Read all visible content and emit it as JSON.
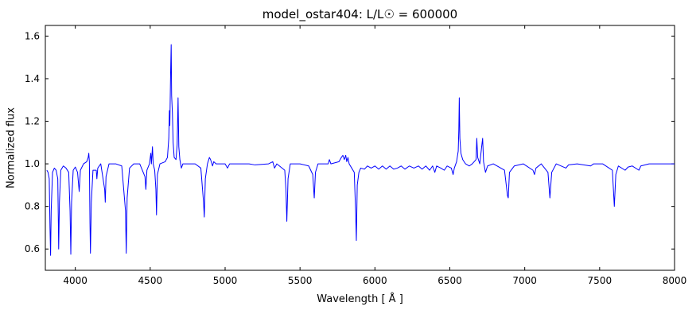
{
  "chart_data": {
    "type": "line",
    "title": "model_ostar404: L/L☉ = 600000",
    "xlabel": "Wavelength [ Å ]",
    "ylabel": "Normalized flux",
    "xlim": [
      3800,
      8000
    ],
    "ylim": [
      0.5,
      1.65
    ],
    "x_ticks": [
      4000,
      4500,
      5000,
      5500,
      6000,
      6500,
      7000,
      7500,
      8000
    ],
    "y_ticks": [
      0.6,
      0.8,
      1.0,
      1.2,
      1.4,
      1.6
    ],
    "grid": false,
    "legend": "none",
    "line_color": "#0000ff",
    "series": [
      {
        "name": "normalized_flux",
        "points": [
          [
            3810,
            0.97
          ],
          [
            3818,
            0.96
          ],
          [
            3826,
            0.93
          ],
          [
            3831,
            0.7
          ],
          [
            3835,
            0.57
          ],
          [
            3839,
            0.78
          ],
          [
            3848,
            0.96
          ],
          [
            3860,
            0.98
          ],
          [
            3872,
            0.97
          ],
          [
            3883,
            0.93
          ],
          [
            3887,
            0.72
          ],
          [
            3889,
            0.6
          ],
          [
            3894,
            0.82
          ],
          [
            3903,
            0.97
          ],
          [
            3920,
            0.99
          ],
          [
            3938,
            0.98
          ],
          [
            3956,
            0.96
          ],
          [
            3965,
            0.78
          ],
          [
            3970,
            0.575
          ],
          [
            3975,
            0.82
          ],
          [
            3986,
            0.97
          ],
          [
            4000,
            0.985
          ],
          [
            4015,
            0.96
          ],
          [
            4026,
            0.87
          ],
          [
            4034,
            0.97
          ],
          [
            4055,
            1.0
          ],
          [
            4076,
            1.01
          ],
          [
            4086,
            1.03
          ],
          [
            4090,
            1.05
          ],
          [
            4094,
            1.01
          ],
          [
            4098,
            0.72
          ],
          [
            4101,
            0.58
          ],
          [
            4107,
            0.82
          ],
          [
            4118,
            0.97
          ],
          [
            4140,
            0.97
          ],
          [
            4144,
            0.93
          ],
          [
            4150,
            0.98
          ],
          [
            4170,
            1.0
          ],
          [
            4196,
            0.88
          ],
          [
            4200,
            0.82
          ],
          [
            4205,
            0.94
          ],
          [
            4225,
            1.0
          ],
          [
            4270,
            1.0
          ],
          [
            4310,
            0.99
          ],
          [
            4335,
            0.78
          ],
          [
            4340,
            0.58
          ],
          [
            4346,
            0.84
          ],
          [
            4362,
            0.98
          ],
          [
            4390,
            1.0
          ],
          [
            4430,
            1.0
          ],
          [
            4465,
            0.94
          ],
          [
            4471,
            0.88
          ],
          [
            4478,
            0.97
          ],
          [
            4495,
            1.0
          ],
          [
            4504,
            1.05
          ],
          [
            4508,
            1.0
          ],
          [
            4515,
            1.08
          ],
          [
            4520,
            1.0
          ],
          [
            4530,
            0.97
          ],
          [
            4538,
            0.88
          ],
          [
            4542,
            0.76
          ],
          [
            4548,
            0.95
          ],
          [
            4565,
            1.0
          ],
          [
            4600,
            1.01
          ],
          [
            4615,
            1.03
          ],
          [
            4624,
            1.12
          ],
          [
            4628,
            1.25
          ],
          [
            4631,
            1.18
          ],
          [
            4636,
            1.42
          ],
          [
            4640,
            1.56
          ],
          [
            4643,
            1.32
          ],
          [
            4648,
            1.24
          ],
          [
            4653,
            1.1
          ],
          [
            4660,
            1.03
          ],
          [
            4672,
            1.02
          ],
          [
            4680,
            1.09
          ],
          [
            4686,
            1.31
          ],
          [
            4691,
            1.08
          ],
          [
            4698,
            1.02
          ],
          [
            4708,
            0.98
          ],
          [
            4718,
            1.0
          ],
          [
            4760,
            1.0
          ],
          [
            4800,
            1.0
          ],
          [
            4838,
            0.98
          ],
          [
            4856,
            0.82
          ],
          [
            4861,
            0.75
          ],
          [
            4868,
            0.93
          ],
          [
            4882,
            1.0
          ],
          [
            4895,
            1.03
          ],
          [
            4903,
            1.02
          ],
          [
            4916,
            0.99
          ],
          [
            4924,
            1.01
          ],
          [
            4940,
            1.0
          ],
          [
            5000,
            1.0
          ],
          [
            5016,
            0.98
          ],
          [
            5030,
            1.0
          ],
          [
            5090,
            1.0
          ],
          [
            5160,
            1.0
          ],
          [
            5200,
            0.995
          ],
          [
            5290,
            1.0
          ],
          [
            5318,
            1.01
          ],
          [
            5330,
            0.98
          ],
          [
            5345,
            1.0
          ],
          [
            5398,
            0.97
          ],
          [
            5406,
            0.88
          ],
          [
            5412,
            0.73
          ],
          [
            5420,
            0.93
          ],
          [
            5435,
            1.0
          ],
          [
            5500,
            1.0
          ],
          [
            5558,
            0.99
          ],
          [
            5585,
            0.95
          ],
          [
            5595,
            0.84
          ],
          [
            5603,
            0.96
          ],
          [
            5620,
            1.0
          ],
          [
            5688,
            1.0
          ],
          [
            5696,
            1.02
          ],
          [
            5706,
            1.0
          ],
          [
            5760,
            1.01
          ],
          [
            5776,
            1.03
          ],
          [
            5786,
            1.04
          ],
          [
            5796,
            1.02
          ],
          [
            5805,
            1.04
          ],
          [
            5812,
            1.01
          ],
          [
            5820,
            1.03
          ],
          [
            5828,
            1.0
          ],
          [
            5845,
            0.98
          ],
          [
            5862,
            0.96
          ],
          [
            5871,
            0.78
          ],
          [
            5876,
            0.64
          ],
          [
            5882,
            0.9
          ],
          [
            5893,
            0.96
          ],
          [
            5905,
            0.98
          ],
          [
            5930,
            0.975
          ],
          [
            5950,
            0.99
          ],
          [
            5975,
            0.98
          ],
          [
            6000,
            0.99
          ],
          [
            6025,
            0.975
          ],
          [
            6050,
            0.99
          ],
          [
            6075,
            0.975
          ],
          [
            6100,
            0.99
          ],
          [
            6125,
            0.975
          ],
          [
            6150,
            0.98
          ],
          [
            6175,
            0.99
          ],
          [
            6200,
            0.975
          ],
          [
            6230,
            0.99
          ],
          [
            6260,
            0.98
          ],
          [
            6290,
            0.99
          ],
          [
            6315,
            0.975
          ],
          [
            6340,
            0.99
          ],
          [
            6365,
            0.97
          ],
          [
            6385,
            0.99
          ],
          [
            6400,
            0.96
          ],
          [
            6412,
            0.99
          ],
          [
            6440,
            0.98
          ],
          [
            6463,
            0.97
          ],
          [
            6482,
            0.99
          ],
          [
            6510,
            0.98
          ],
          [
            6522,
            0.95
          ],
          [
            6530,
            0.98
          ],
          [
            6545,
            1.01
          ],
          [
            6556,
            1.06
          ],
          [
            6560,
            1.16
          ],
          [
            6563,
            1.31
          ],
          [
            6567,
            1.12
          ],
          [
            6574,
            1.05
          ],
          [
            6586,
            1.02
          ],
          [
            6605,
            1.0
          ],
          [
            6630,
            0.99
          ],
          [
            6650,
            1.0
          ],
          [
            6675,
            1.02
          ],
          [
            6680,
            1.12
          ],
          [
            6686,
            1.03
          ],
          [
            6700,
            1.0
          ],
          [
            6714,
            1.09
          ],
          [
            6719,
            1.12
          ],
          [
            6725,
            1.01
          ],
          [
            6738,
            0.96
          ],
          [
            6752,
            0.99
          ],
          [
            6790,
            1.0
          ],
          [
            6865,
            0.97
          ],
          [
            6885,
            0.85
          ],
          [
            6890,
            0.84
          ],
          [
            6898,
            0.96
          ],
          [
            6930,
            0.99
          ],
          [
            6990,
            1.0
          ],
          [
            7055,
            0.97
          ],
          [
            7065,
            0.95
          ],
          [
            7075,
            0.98
          ],
          [
            7110,
            1.0
          ],
          [
            7155,
            0.96
          ],
          [
            7168,
            0.84
          ],
          [
            7180,
            0.96
          ],
          [
            7210,
            1.0
          ],
          [
            7275,
            0.98
          ],
          [
            7292,
            0.995
          ],
          [
            7350,
            1.0
          ],
          [
            7440,
            0.99
          ],
          [
            7460,
            1.0
          ],
          [
            7520,
            1.0
          ],
          [
            7585,
            0.97
          ],
          [
            7598,
            0.8
          ],
          [
            7608,
            0.95
          ],
          [
            7625,
            0.99
          ],
          [
            7670,
            0.97
          ],
          [
            7690,
            0.985
          ],
          [
            7718,
            0.99
          ],
          [
            7762,
            0.97
          ],
          [
            7775,
            0.99
          ],
          [
            7830,
            1.0
          ],
          [
            7900,
            1.0
          ],
          [
            7960,
            1.0
          ],
          [
            8000,
            1.0
          ]
        ]
      }
    ]
  }
}
